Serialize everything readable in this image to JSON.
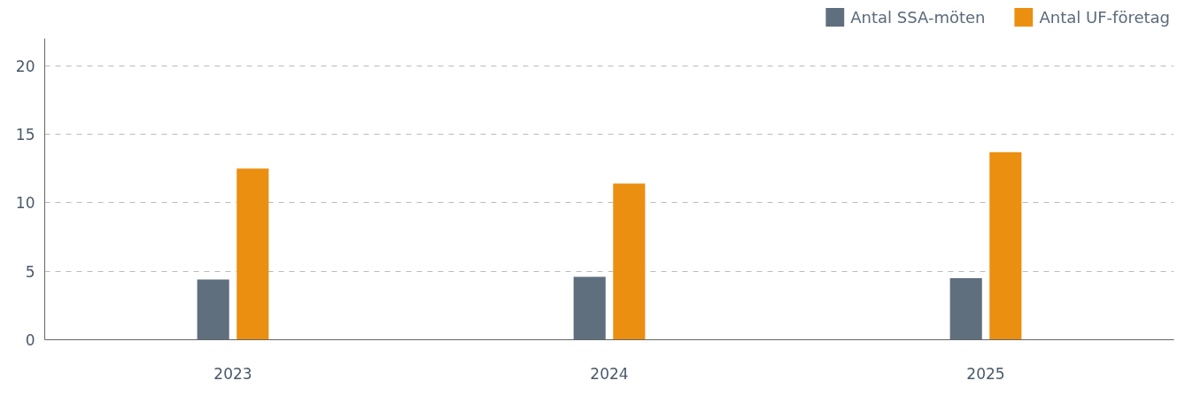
{
  "chart_data": {
    "type": "bar",
    "categories": [
      "2023",
      "2024",
      "2025"
    ],
    "series": [
      {
        "name": "Antal SSA-möten",
        "color": "#5f6f7e",
        "values": [
          4.4,
          4.6,
          4.5
        ]
      },
      {
        "name": "Antal UF-företag",
        "color": "#eb8f10",
        "values": [
          12.5,
          11.4,
          13.7
        ]
      }
    ],
    "ylim": [
      0,
      22
    ],
    "yticks": [
      0,
      5,
      10,
      15,
      20
    ],
    "grid": "y",
    "legend": "top right"
  }
}
